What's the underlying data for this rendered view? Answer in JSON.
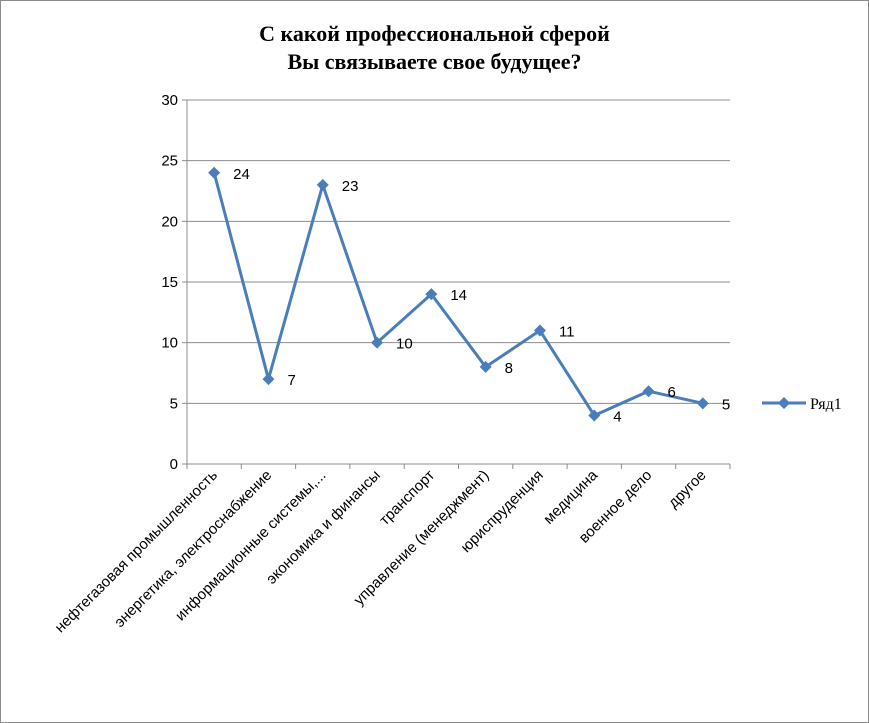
{
  "chart_data": {
    "type": "line",
    "title_line1": "С какой профессиональной сферой",
    "title_line2": "Вы связываете свое будущее?",
    "categories": [
      "нефтегазовая промышленность",
      "энергетика, электроснабжение",
      "информационные системы,...",
      "экономика и финансы",
      "транспорт",
      "управление (менеджмент)",
      "юриспруденция",
      "медицина",
      "военное дело",
      "другое"
    ],
    "series": [
      {
        "name": "Ряд1",
        "values": [
          24,
          7,
          23,
          10,
          14,
          8,
          11,
          4,
          6,
          5
        ],
        "color": "#4a7ebb"
      }
    ],
    "ylim": [
      0,
      30
    ],
    "yticks": [
      "0",
      "5",
      "10",
      "15",
      "20",
      "25",
      "30"
    ],
    "grid": true,
    "legend": "right"
  }
}
